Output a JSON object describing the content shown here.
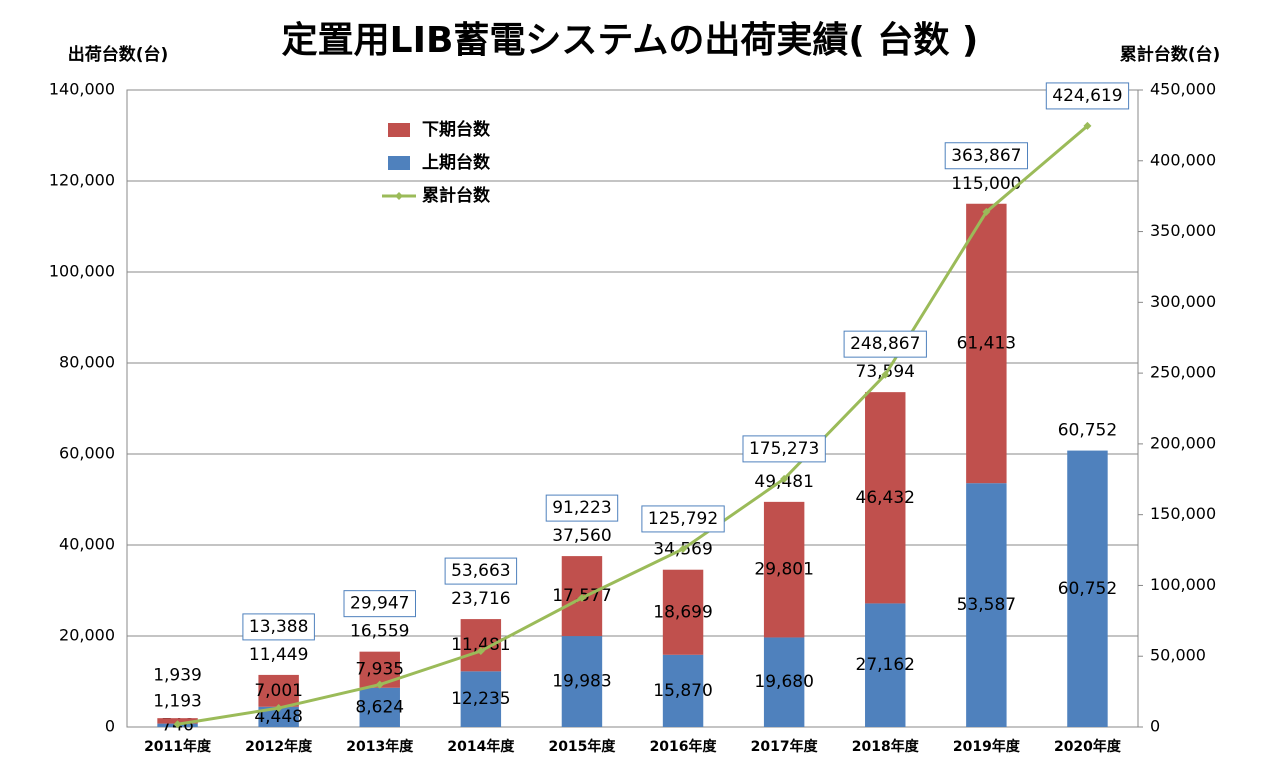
{
  "chart_data": {
    "type": "bar_line",
    "title": "定置用LIB蓄電システムの出荷実績( 台数 )",
    "ylabel": "出荷台数(台)",
    "y2label": "累計台数(台)",
    "categories": [
      "2011年度",
      "2012年度",
      "2013年度",
      "2014年度",
      "2015年度",
      "2016年度",
      "2017年度",
      "2018年度",
      "2019年度",
      "2020年度"
    ],
    "series": [
      {
        "name": "上期台数",
        "color": "#4f81bd",
        "kind": "bar",
        "values": [
          746,
          4448,
          8624,
          12235,
          19983,
          15870,
          19680,
          27162,
          53587,
          60752
        ],
        "value_labels": [
          "746",
          "4,448",
          "8,624",
          "12,235",
          "19,983",
          "15,870",
          "19,680",
          "27,162",
          "53,587",
          "60,752"
        ]
      },
      {
        "name": "下期台数",
        "color": "#c0504d",
        "kind": "bar",
        "values": [
          1193,
          7001,
          7935,
          11481,
          17577,
          18699,
          29801,
          46432,
          61413,
          null
        ],
        "value_labels": [
          "1,193",
          "7,001",
          "7,935",
          "11,481",
          "17,577",
          "18,699",
          "29,801",
          "46,432",
          "61,413",
          null
        ]
      },
      {
        "name": "累計台数",
        "color": "#9bbb59",
        "kind": "line",
        "axis": "y2",
        "values": [
          1939,
          13388,
          29947,
          53663,
          91223,
          125792,
          175273,
          248867,
          363867,
          424619
        ],
        "value_labels": [
          null,
          "13,388",
          "29,947",
          "53,663",
          "91,223",
          "125,792",
          "175,273",
          "248,867",
          "363,867",
          "424,619"
        ]
      }
    ],
    "totals": [
      1939,
      11449,
      16559,
      23716,
      37560,
      34569,
      49481,
      73594,
      115000,
      60752
    ],
    "total_labels": [
      "1,939",
      "11,449",
      "16,559",
      "23,716",
      "37,560",
      "34,569",
      "49,481",
      "73,594",
      "115,000",
      "60,752"
    ],
    "ylim": [
      0,
      140000
    ],
    "yticks": [
      0,
      {
        "value": 20000,
        "label": "20,000"
      },
      {
        "value": 40000,
        "label": "40,000"
      },
      {
        "value": 60000,
        "label": "60,000"
      },
      {
        "value": 80000,
        "label": "80,000"
      },
      {
        "value": 100000,
        "label": "100,000"
      },
      {
        "value": 120000,
        "label": "120,000"
      },
      {
        "value": 140000,
        "label": "140,000"
      }
    ],
    "y2lim": [
      0,
      450000
    ],
    "y2ticks": [
      0,
      {
        "value": 50000,
        "label": "50,000"
      },
      {
        "value": 100000,
        "label": "100,000"
      },
      {
        "value": 150000,
        "label": "150,000"
      },
      {
        "value": 200000,
        "label": "200,000"
      },
      {
        "value": 250000,
        "label": "250,000"
      },
      {
        "value": 300000,
        "label": "300,000"
      },
      {
        "value": 350000,
        "label": "350,000"
      },
      {
        "value": 400000,
        "label": "400,000"
      },
      {
        "value": 450000,
        "label": "450,000"
      }
    ],
    "grid": true,
    "legend": "upper left"
  }
}
